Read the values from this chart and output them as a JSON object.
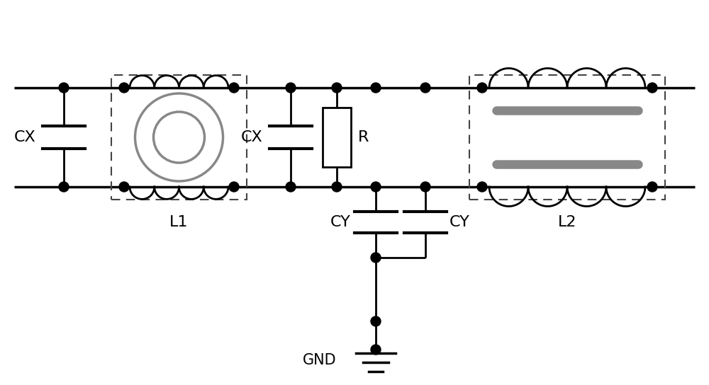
{
  "background_color": "#ffffff",
  "line_color": "#000000",
  "gray_color": "#888888",
  "dashed_box_color": "#444444",
  "labels": {
    "CX_left": "CX",
    "CX_mid": "CX",
    "R": "R",
    "CY_left": "CY",
    "CY_right": "CY",
    "L1": "L1",
    "L2": "L2",
    "GND": "GND"
  },
  "figsize": [
    10.0,
    5.44
  ],
  "dpi": 100
}
